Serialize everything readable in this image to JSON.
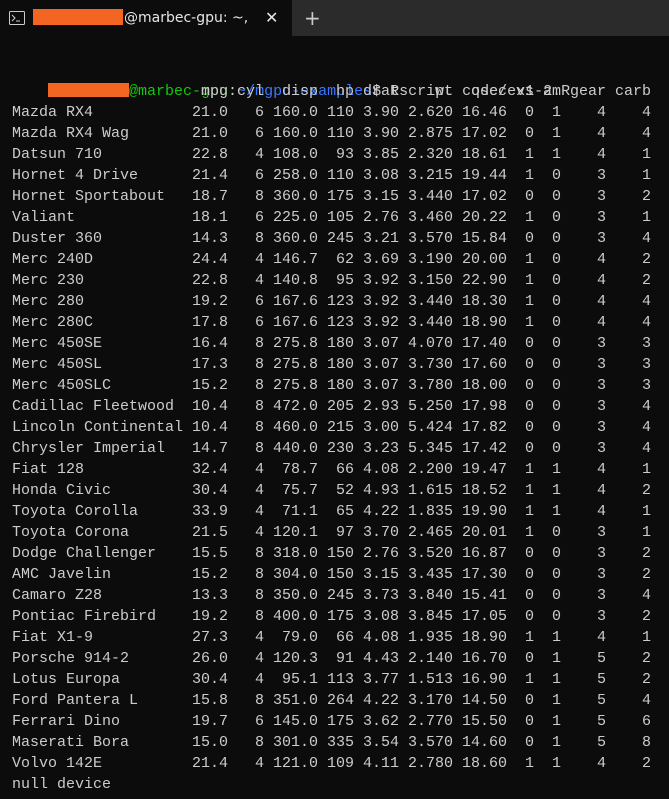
{
  "tab": {
    "title": "@marbec-gpu: ~,",
    "close": "✕",
    "new_tab": "+"
  },
  "prompt": {
    "host": "@marbec-gpu",
    "separator": ":",
    "path": "~/mgpu-examples",
    "command": "$ Rscript code/ex1-2.R"
  },
  "table": {
    "header": [
      "mpg",
      "cyl",
      "disp",
      "hp",
      "drat",
      "wt",
      "qsec",
      "vs",
      "am",
      "gear",
      "carb"
    ],
    "rows": [
      [
        "Mazda RX4",
        "21.0",
        "6",
        "160.0",
        "110",
        "3.90",
        "2.620",
        "16.46",
        "0",
        "1",
        "4",
        "4"
      ],
      [
        "Mazda RX4 Wag",
        "21.0",
        "6",
        "160.0",
        "110",
        "3.90",
        "2.875",
        "17.02",
        "0",
        "1",
        "4",
        "4"
      ],
      [
        "Datsun 710",
        "22.8",
        "4",
        "108.0",
        "93",
        "3.85",
        "2.320",
        "18.61",
        "1",
        "1",
        "4",
        "1"
      ],
      [
        "Hornet 4 Drive",
        "21.4",
        "6",
        "258.0",
        "110",
        "3.08",
        "3.215",
        "19.44",
        "1",
        "0",
        "3",
        "1"
      ],
      [
        "Hornet Sportabout",
        "18.7",
        "8",
        "360.0",
        "175",
        "3.15",
        "3.440",
        "17.02",
        "0",
        "0",
        "3",
        "2"
      ],
      [
        "Valiant",
        "18.1",
        "6",
        "225.0",
        "105",
        "2.76",
        "3.460",
        "20.22",
        "1",
        "0",
        "3",
        "1"
      ],
      [
        "Duster 360",
        "14.3",
        "8",
        "360.0",
        "245",
        "3.21",
        "3.570",
        "15.84",
        "0",
        "0",
        "3",
        "4"
      ],
      [
        "Merc 240D",
        "24.4",
        "4",
        "146.7",
        "62",
        "3.69",
        "3.190",
        "20.00",
        "1",
        "0",
        "4",
        "2"
      ],
      [
        "Merc 230",
        "22.8",
        "4",
        "140.8",
        "95",
        "3.92",
        "3.150",
        "22.90",
        "1",
        "0",
        "4",
        "2"
      ],
      [
        "Merc 280",
        "19.2",
        "6",
        "167.6",
        "123",
        "3.92",
        "3.440",
        "18.30",
        "1",
        "0",
        "4",
        "4"
      ],
      [
        "Merc 280C",
        "17.8",
        "6",
        "167.6",
        "123",
        "3.92",
        "3.440",
        "18.90",
        "1",
        "0",
        "4",
        "4"
      ],
      [
        "Merc 450SE",
        "16.4",
        "8",
        "275.8",
        "180",
        "3.07",
        "4.070",
        "17.40",
        "0",
        "0",
        "3",
        "3"
      ],
      [
        "Merc 450SL",
        "17.3",
        "8",
        "275.8",
        "180",
        "3.07",
        "3.730",
        "17.60",
        "0",
        "0",
        "3",
        "3"
      ],
      [
        "Merc 450SLC",
        "15.2",
        "8",
        "275.8",
        "180",
        "3.07",
        "3.780",
        "18.00",
        "0",
        "0",
        "3",
        "3"
      ],
      [
        "Cadillac Fleetwood",
        "10.4",
        "8",
        "472.0",
        "205",
        "2.93",
        "5.250",
        "17.98",
        "0",
        "0",
        "3",
        "4"
      ],
      [
        "Lincoln Continental",
        "10.4",
        "8",
        "460.0",
        "215",
        "3.00",
        "5.424",
        "17.82",
        "0",
        "0",
        "3",
        "4"
      ],
      [
        "Chrysler Imperial",
        "14.7",
        "8",
        "440.0",
        "230",
        "3.23",
        "5.345",
        "17.42",
        "0",
        "0",
        "3",
        "4"
      ],
      [
        "Fiat 128",
        "32.4",
        "4",
        "78.7",
        "66",
        "4.08",
        "2.200",
        "19.47",
        "1",
        "1",
        "4",
        "1"
      ],
      [
        "Honda Civic",
        "30.4",
        "4",
        "75.7",
        "52",
        "4.93",
        "1.615",
        "18.52",
        "1",
        "1",
        "4",
        "2"
      ],
      [
        "Toyota Corolla",
        "33.9",
        "4",
        "71.1",
        "65",
        "4.22",
        "1.835",
        "19.90",
        "1",
        "1",
        "4",
        "1"
      ],
      [
        "Toyota Corona",
        "21.5",
        "4",
        "120.1",
        "97",
        "3.70",
        "2.465",
        "20.01",
        "1",
        "0",
        "3",
        "1"
      ],
      [
        "Dodge Challenger",
        "15.5",
        "8",
        "318.0",
        "150",
        "2.76",
        "3.520",
        "16.87",
        "0",
        "0",
        "3",
        "2"
      ],
      [
        "AMC Javelin",
        "15.2",
        "8",
        "304.0",
        "150",
        "3.15",
        "3.435",
        "17.30",
        "0",
        "0",
        "3",
        "2"
      ],
      [
        "Camaro Z28",
        "13.3",
        "8",
        "350.0",
        "245",
        "3.73",
        "3.840",
        "15.41",
        "0",
        "0",
        "3",
        "4"
      ],
      [
        "Pontiac Firebird",
        "19.2",
        "8",
        "400.0",
        "175",
        "3.08",
        "3.845",
        "17.05",
        "0",
        "0",
        "3",
        "2"
      ],
      [
        "Fiat X1-9",
        "27.3",
        "4",
        "79.0",
        "66",
        "4.08",
        "1.935",
        "18.90",
        "1",
        "1",
        "4",
        "1"
      ],
      [
        "Porsche 914-2",
        "26.0",
        "4",
        "120.3",
        "91",
        "4.43",
        "2.140",
        "16.70",
        "0",
        "1",
        "5",
        "2"
      ],
      [
        "Lotus Europa",
        "30.4",
        "4",
        "95.1",
        "113",
        "3.77",
        "1.513",
        "16.90",
        "1",
        "1",
        "5",
        "2"
      ],
      [
        "Ford Pantera L",
        "15.8",
        "8",
        "351.0",
        "264",
        "4.22",
        "3.170",
        "14.50",
        "0",
        "1",
        "5",
        "4"
      ],
      [
        "Ferrari Dino",
        "19.7",
        "6",
        "145.0",
        "175",
        "3.62",
        "2.770",
        "15.50",
        "0",
        "1",
        "5",
        "6"
      ],
      [
        "Maserati Bora",
        "15.0",
        "8",
        "301.0",
        "335",
        "3.54",
        "3.570",
        "14.60",
        "0",
        "1",
        "5",
        "8"
      ],
      [
        "Volvo 142E",
        "21.4",
        "4",
        "121.0",
        "109",
        "4.11",
        "2.780",
        "18.60",
        "1",
        "1",
        "4",
        "2"
      ]
    ]
  },
  "output": "null device"
}
